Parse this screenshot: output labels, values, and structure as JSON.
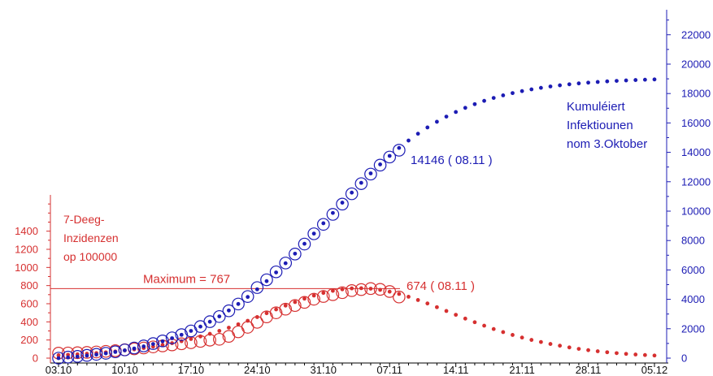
{
  "chart_data": {
    "type": "scatter",
    "dates": [
      "03.10",
      "04.10",
      "05.10",
      "06.10",
      "07.10",
      "08.10",
      "09.10",
      "10.10",
      "11.10",
      "12.10",
      "13.10",
      "14.10",
      "15.10",
      "16.10",
      "17.10",
      "18.10",
      "19.10",
      "20.10",
      "21.10",
      "22.10",
      "23.10",
      "24.10",
      "25.10",
      "26.10",
      "27.10",
      "28.10",
      "29.10",
      "30.10",
      "31.10",
      "01.11",
      "02.11",
      "03.11",
      "04.11",
      "05.11",
      "06.11",
      "07.11",
      "08.11",
      "09.11",
      "10.11",
      "11.11",
      "12.11",
      "13.11",
      "14.11",
      "15.11",
      "16.11",
      "17.11",
      "18.11",
      "19.11",
      "20.11",
      "21.11",
      "22.11",
      "23.11",
      "24.11",
      "25.11",
      "26.11",
      "27.11",
      "28.11",
      "29.11",
      "30.11",
      "01.12",
      "02.12",
      "03.12",
      "04.12",
      "05.12"
    ],
    "xlim": [
      "03.10",
      "05.12"
    ],
    "xticks": [
      "03.10",
      "10.10",
      "17.10",
      "24.10",
      "31.10",
      "07.11",
      "14.11",
      "21.11",
      "28.11",
      "05.12"
    ],
    "y_left": {
      "range": [
        0,
        1800
      ],
      "ticks": [
        0,
        200,
        400,
        600,
        800,
        1000,
        1200,
        1400
      ],
      "label_lines": [
        "7-Deeg-",
        "Inzidenzen",
        "op 100000"
      ],
      "color": "#d63030"
    },
    "y_right": {
      "range": [
        0,
        23700
      ],
      "ticks": [
        0,
        2000,
        4000,
        6000,
        8000,
        10000,
        12000,
        14000,
        16000,
        18000,
        20000,
        22000
      ],
      "label_lines": [
        "Kumuléiert",
        "Infektiounen",
        "nom 3.Oktober"
      ],
      "color": "#1c1cb4"
    },
    "series": [
      {
        "axis": "left",
        "marker": "hollow-circle",
        "color": "#d63030",
        "values": [
          55,
          57,
          60,
          63,
          68,
          75,
          82,
          92,
          102,
          112,
          124,
          135,
          146,
          158,
          170,
          185,
          198,
          208,
          240,
          290,
          340,
          395,
          455,
          500,
          540,
          580,
          615,
          650,
          680,
          700,
          722,
          745,
          756,
          767,
          758,
          735,
          674
        ]
      },
      {
        "axis": "left",
        "marker": "dot",
        "color": "#d63030",
        "values": [
          32,
          37,
          42,
          49,
          56,
          64,
          74,
          85,
          97,
          111,
          127,
          145,
          165,
          187,
          211,
          239,
          268,
          301,
          336,
          373,
          412,
          453,
          495,
          537,
          579,
          618,
          656,
          690,
          719,
          742,
          759,
          769,
          771,
          766,
          753,
          733,
          708,
          677,
          641,
          603,
          562,
          520,
          478,
          436,
          396,
          358,
          321,
          287,
          256,
          227,
          201,
          178,
          156,
          137,
          118,
          102,
          88,
          76,
          65,
          55,
          47,
          40,
          34,
          29
        ]
      },
      {
        "axis": "right",
        "marker": "hollow-circle",
        "color": "#1c1cb4",
        "values": [
          0,
          70,
          120,
          190,
          260,
          330,
          430,
          560,
          690,
          830,
          990,
          1170,
          1380,
          1600,
          1850,
          2150,
          2480,
          2830,
          3220,
          3680,
          4190,
          4800,
          5330,
          5870,
          6470,
          7080,
          7760,
          8460,
          9100,
          9780,
          10480,
          11180,
          11870,
          12520,
          13130,
          13680,
          14146
        ]
      },
      {
        "axis": "right",
        "marker": "dot",
        "color": "#1c1cb4",
        "values": [
          0,
          48,
          104,
          168,
          241,
          324,
          420,
          530,
          656,
          799,
          961,
          1145,
          1353,
          1588,
          1852,
          2147,
          2476,
          2840,
          3243,
          3683,
          4163,
          4682,
          5239,
          5830,
          6456,
          7107,
          7782,
          8473,
          9174,
          9877,
          10575,
          11260,
          11926,
          12568,
          13180,
          13758,
          14300,
          14803,
          15267,
          15693,
          16080,
          16429,
          16745,
          17027,
          17278,
          17503,
          17701,
          17877,
          18031,
          18166,
          18285,
          18389,
          18480,
          18560,
          18629,
          18689,
          18742,
          18787,
          18827,
          18861,
          18891,
          18917,
          18940,
          18959
        ]
      }
    ],
    "maximum": {
      "value": 767,
      "axis": "left",
      "label": "Maximum = 767"
    },
    "annotations": {
      "cumulative_last": "14146 ( 08.11 )",
      "incidence_last": "674 ( 08.11 )"
    },
    "grid": false
  }
}
